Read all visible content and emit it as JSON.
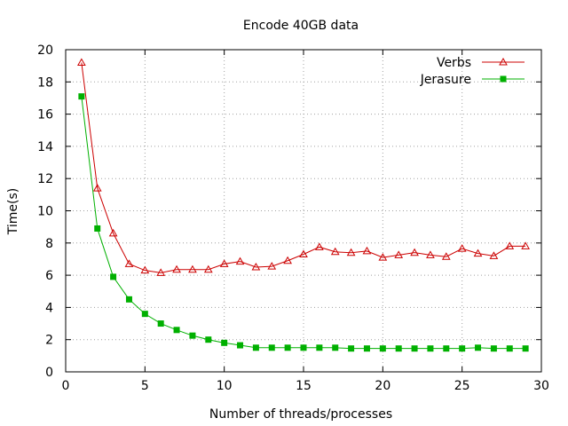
{
  "chart_data": {
    "type": "line",
    "title": "Encode 40GB data",
    "xlabel": "Number of threads/processes",
    "ylabel": "Time(s)",
    "xlim": [
      0,
      30
    ],
    "ylim": [
      0,
      20
    ],
    "xticks": [
      0,
      5,
      10,
      15,
      20,
      25,
      30
    ],
    "yticks": [
      0,
      2,
      4,
      6,
      8,
      10,
      12,
      14,
      16,
      18,
      20
    ],
    "grid": true,
    "legend_position": "top-right",
    "x": [
      1,
      2,
      3,
      4,
      5,
      6,
      7,
      8,
      9,
      10,
      11,
      12,
      13,
      14,
      15,
      16,
      17,
      18,
      19,
      20,
      21,
      22,
      23,
      24,
      25,
      26,
      27,
      28,
      29
    ],
    "series": [
      {
        "name": "Verbs",
        "color": "#cc0000",
        "marker": "open-triangle",
        "values": [
          19.2,
          11.4,
          8.6,
          6.7,
          6.3,
          6.15,
          6.35,
          6.35,
          6.35,
          6.7,
          6.85,
          6.5,
          6.55,
          6.9,
          7.3,
          7.75,
          7.45,
          7.4,
          7.5,
          7.1,
          7.25,
          7.4,
          7.25,
          7.15,
          7.65,
          7.35,
          7.2,
          7.8,
          7.8
        ]
      },
      {
        "name": "Jerasure",
        "color": "#00b000",
        "marker": "filled-square",
        "values": [
          17.1,
          8.9,
          5.9,
          4.5,
          3.6,
          3.0,
          2.6,
          2.25,
          2.0,
          1.8,
          1.65,
          1.5,
          1.5,
          1.5,
          1.5,
          1.5,
          1.5,
          1.45,
          1.45,
          1.45,
          1.45,
          1.45,
          1.45,
          1.45,
          1.45,
          1.5,
          1.45,
          1.45,
          1.45
        ]
      }
    ]
  }
}
